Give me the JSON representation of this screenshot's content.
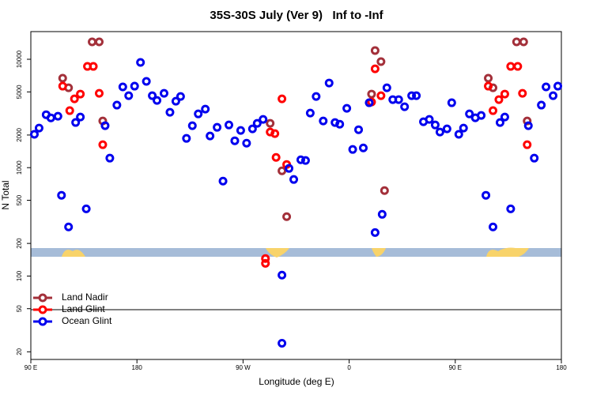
{
  "chart_data": {
    "type": "scatter",
    "title": "35S-30S July (Ver 9)   Inf to -Inf",
    "x_label": "Longitude (deg E)",
    "y_label": "N Total",
    "log_y": true,
    "legend_loc": "lower left",
    "xlim": [
      90,
      540
    ],
    "ylim": [
      17,
      18000
    ],
    "xticks": [
      {
        "value": 90,
        "label": "90 E"
      },
      {
        "value": 180,
        "label": "180"
      },
      {
        "value": 270,
        "label": "90 W"
      },
      {
        "value": 360,
        "label": "0"
      },
      {
        "value": 450,
        "label": "90 E"
      },
      {
        "value": 540,
        "label": "180"
      }
    ],
    "yticks": [
      20,
      50,
      100,
      200,
      500,
      1000,
      2000,
      5000,
      10000
    ],
    "series": [
      {
        "name": "Land Nadir",
        "color": "#a3303a",
        "x": [
          117,
          122,
          142,
          148,
          151,
          293,
          303,
          307,
          379,
          382,
          387,
          390,
          478,
          482,
          502,
          508,
          511
        ],
        "values": [
          6683,
          5459,
          14480,
          14480,
          2698,
          2564,
          935,
          353,
          4775,
          12030,
          9509,
          614,
          6683,
          5459,
          14480,
          14480,
          2698
        ]
      },
      {
        "name": "Land Glint",
        "color": "#ff0000",
        "x": [
          117,
          123,
          127,
          132,
          138,
          143,
          148,
          151,
          289,
          289,
          293,
          297,
          298,
          303,
          307,
          379,
          382,
          387,
          478,
          482,
          487,
          492,
          497,
          503,
          507,
          511
        ],
        "values": [
          5649,
          3357,
          4315,
          4775,
          8593,
          8593,
          4853,
          1628,
          145,
          131,
          2130,
          2061,
          1244,
          4315,
          1070,
          4036,
          8166,
          4613,
          5649,
          3357,
          4246,
          4775,
          8593,
          8593,
          4853,
          1628
        ]
      },
      {
        "name": "Ocean Glint",
        "color": "#0000ee",
        "x": [
          93,
          97,
          103,
          107,
          113,
          116,
          122,
          128,
          132,
          137,
          153,
          157,
          163,
          168,
          173,
          178,
          183,
          188,
          193,
          197,
          203,
          208,
          213,
          217,
          222,
          227,
          232,
          238,
          242,
          248,
          253,
          258,
          263,
          268,
          273,
          278,
          282,
          287,
          303,
          303,
          309,
          313,
          319,
          323,
          327,
          332,
          338,
          343,
          348,
          352,
          358,
          363,
          368,
          372,
          377,
          382,
          388,
          392,
          397,
          402,
          407,
          413,
          417,
          423,
          428,
          433,
          437,
          443,
          447,
          453,
          457,
          462,
          467,
          472,
          476,
          482,
          488,
          492,
          497,
          512,
          517,
          523,
          527,
          533,
          537
        ],
        "values": [
          2030,
          2320,
          3080,
          2880,
          2980,
          556,
          284,
          2610,
          2930,
          417,
          2440,
          1224,
          3776,
          5559,
          4613,
          5649,
          9354,
          6252,
          4613,
          4169,
          4853,
          3243,
          4102,
          4539,
          1862,
          2438,
          3133,
          3467,
          1959,
          2355,
          751,
          2477,
          1770,
          2203,
          1683,
          2280,
          2564,
          2786,
          24,
          102,
          984,
          778,
          1183,
          1164,
          3190,
          4539,
          2698,
          6039,
          2606,
          2518,
          3524,
          1472,
          2239,
          1521,
          3971,
          252,
          371,
          5459,
          4246,
          4246,
          3648,
          4613,
          4613,
          2650,
          2786,
          2477,
          2130,
          2280,
          3971,
          2030,
          2317,
          3133,
          2884,
          3034,
          556,
          284,
          2606,
          2930,
          417,
          2438,
          1224,
          3776,
          5559,
          4613,
          5649
        ]
      }
    ]
  }
}
